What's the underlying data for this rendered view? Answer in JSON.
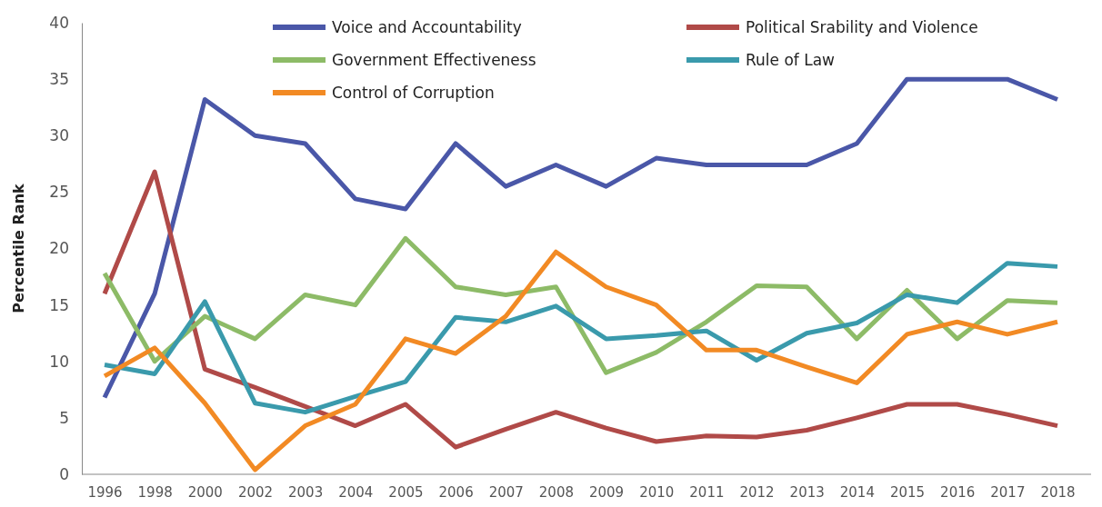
{
  "chart_data": {
    "type": "line",
    "ylabel": "Percentile Rank",
    "categories": [
      "1996",
      "1998",
      "2000",
      "2002",
      "2003",
      "2004",
      "2005",
      "2006",
      "2007",
      "2008",
      "2009",
      "2010",
      "2011",
      "2012",
      "2013",
      "2014",
      "2015",
      "2016",
      "2017",
      "2018"
    ],
    "ylim": [
      0,
      40
    ],
    "yticks": [
      0,
      5,
      10,
      15,
      20,
      25,
      30,
      35,
      40
    ],
    "grid": false,
    "legend": "top",
    "line_style": "solid",
    "marker": "none",
    "series": [
      {
        "name": "Voice and Accountability",
        "color": "#4a57a8",
        "values": [
          6.8,
          16,
          33.2,
          30,
          29.3,
          24.4,
          23.5,
          29.3,
          25.5,
          27.4,
          25.5,
          28,
          27.4,
          27.4,
          27.4,
          29.3,
          35,
          35,
          35,
          33.2
        ]
      },
      {
        "name": "Political Srability and Violence",
        "color": "#b04a48",
        "values": [
          16,
          26.8,
          9.3,
          7.7,
          6,
          4.3,
          6.2,
          2.4,
          4,
          5.5,
          4.1,
          2.9,
          3.4,
          3.3,
          3.9,
          5,
          6.2,
          6.2,
          5.3,
          4.3
        ]
      },
      {
        "name": "Government Effectiveness",
        "color": "#8dbb67",
        "values": [
          17.8,
          10,
          14,
          12,
          15.9,
          15,
          20.9,
          16.6,
          15.9,
          16.6,
          9,
          10.8,
          13.5,
          16.7,
          16.6,
          12,
          16.3,
          12,
          15.4,
          15.2
        ]
      },
      {
        "name": "Rule of Law",
        "color": "#3a9aac",
        "values": [
          9.7,
          8.9,
          15.3,
          6.3,
          5.5,
          6.9,
          8.2,
          13.9,
          13.5,
          14.9,
          12,
          12.3,
          12.7,
          10.1,
          12.5,
          13.4,
          15.9,
          15.2,
          18.7,
          18.4
        ]
      },
      {
        "name": "Control of Corruption",
        "color": "#f28a24",
        "values": [
          8.7,
          11.2,
          6.3,
          0.4,
          4.3,
          6.2,
          12,
          10.7,
          14,
          19.7,
          16.6,
          15,
          11,
          11,
          9.5,
          8.1,
          12.4,
          13.5,
          12.4,
          13.5
        ]
      }
    ]
  }
}
